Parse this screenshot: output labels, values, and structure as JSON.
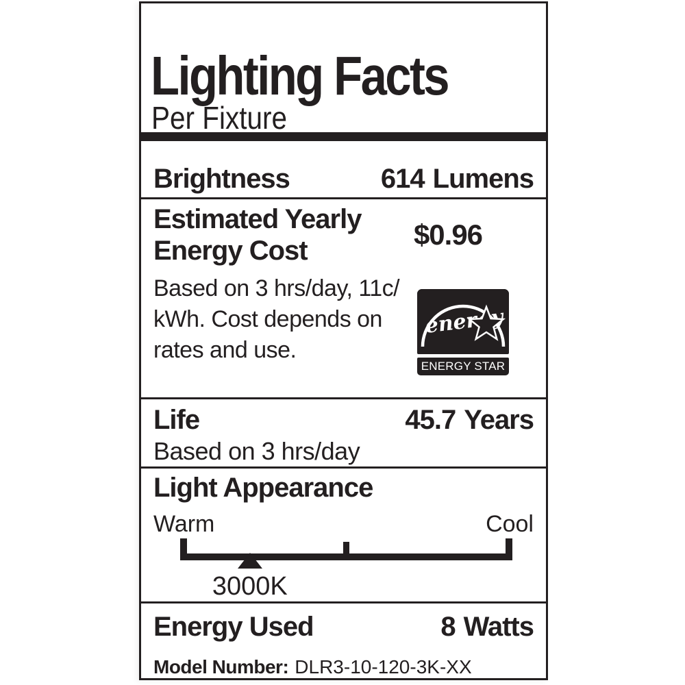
{
  "label": {
    "title": "Lighting Facts",
    "subtitle": "Per Fixture",
    "colors": {
      "ink": "#231f20",
      "background": "#ffffff"
    },
    "rows": {
      "brightness": {
        "label": "Brightness",
        "value": "614",
        "unit": "Lumens"
      },
      "energy_cost": {
        "label_line1": "Estimated Yearly",
        "label_line2": "Energy Cost",
        "value": "$0.96"
      },
      "cost_note": {
        "line1": "Based on 3 hrs/day, 11c/",
        "line2": "kWh. Cost depends on",
        "line3": "rates and use."
      },
      "life": {
        "label": "Life",
        "value": "45.7",
        "unit": "Years",
        "note": "Based on 3 hrs/day"
      },
      "light_appearance": {
        "label": "Light Appearance",
        "warm_label": "Warm",
        "cool_label": "Cool",
        "marker_value": "3000K",
        "marker_position_pct": 21
      },
      "energy_used": {
        "label": "Energy Used",
        "value": "8",
        "unit": "Watts"
      },
      "model": {
        "label": "Model Number:",
        "value": "DLR3-10-120-3K-XX"
      }
    },
    "energy_star": {
      "script_text": "energy",
      "caption": "ENERGY STAR"
    }
  }
}
